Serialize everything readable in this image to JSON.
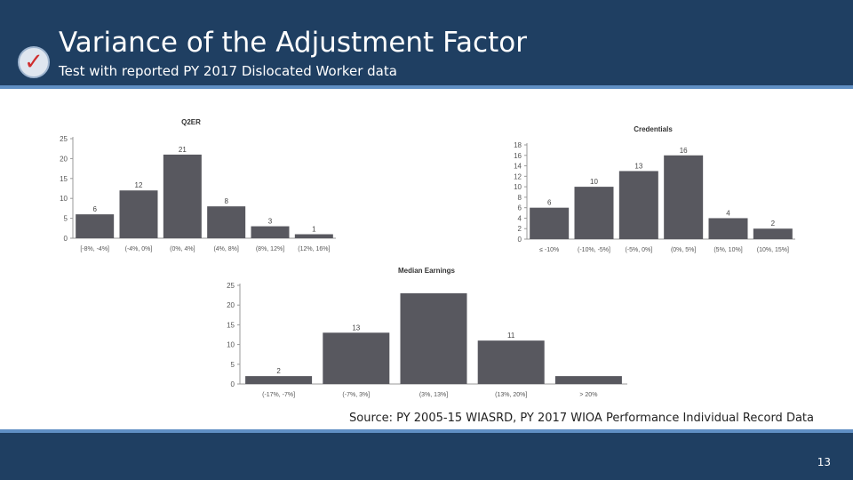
{
  "slide": {
    "title": "Variance of the Adjustment Factor",
    "subtitle": "Test with reported PY 2017 Dislocated Worker data",
    "source": "Source: PY 2005-15 WIASRD, PY 2017 WIOA Performance Individual Record Data",
    "page_number": "13",
    "icon": "checkmark-icon",
    "colors": {
      "header": "#1f3f62",
      "accent": "#5f8fc4",
      "bar": "#58585f",
      "check": "#cf2e2e"
    }
  },
  "chart_data": [
    {
      "type": "bar",
      "title": "Q2ER",
      "categories": [
        "[-8%, -4%]",
        "(-4%, 0%]",
        "(0%, 4%]",
        "(4%, 8%]",
        "(8%, 12%]",
        "(12%, 16%]"
      ],
      "values": [
        6,
        12,
        21,
        8,
        3,
        1
      ],
      "data_labels": [
        "6",
        "12",
        "21",
        "8",
        "3",
        "1"
      ],
      "ylim": [
        0,
        25
      ],
      "yticks": [
        0,
        5,
        10,
        15,
        20,
        25
      ],
      "grid": false
    },
    {
      "type": "bar",
      "title": "Credentials",
      "categories": [
        "≤ -10%",
        "(-10%, -5%]",
        "(-5%, 0%]",
        "(0%, 5%]",
        "(5%, 10%]",
        "(10%, 15%]"
      ],
      "values": [
        6,
        10,
        13,
        16,
        4,
        2
      ],
      "data_labels": [
        "6",
        "10",
        "13",
        "16",
        "4",
        "2"
      ],
      "ylim": [
        0,
        18
      ],
      "yticks": [
        0,
        2,
        4,
        6,
        8,
        10,
        12,
        14,
        16,
        18
      ],
      "grid": false
    },
    {
      "type": "bar",
      "title": "Median Earnings",
      "categories": [
        "(-17%, -7%]",
        "(-7%, 3%]",
        "(3%, 13%]",
        "(13%, 20%]",
        "> 20%"
      ],
      "values": [
        2,
        13,
        23,
        11,
        2
      ],
      "data_labels": [
        "2",
        "13",
        "",
        "11",
        ""
      ],
      "ylim": [
        0,
        25
      ],
      "yticks": [
        0,
        5,
        10,
        15,
        20,
        25
      ],
      "grid": false
    }
  ]
}
